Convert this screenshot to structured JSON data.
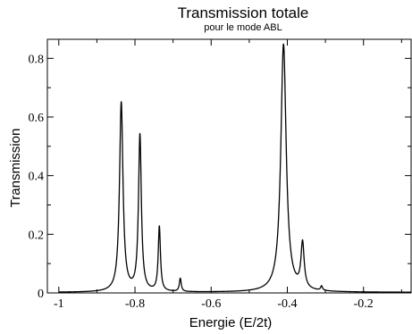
{
  "chart_data": {
    "type": "line",
    "title": "Transmission totale",
    "subtitle": "pour le mode ABL",
    "xlabel": "Energie (E/2t)",
    "ylabel": "Transmission",
    "xlim": [
      -1.03,
      -0.075
    ],
    "ylim": [
      0,
      0.865
    ],
    "xticks": [
      {
        "value": -1.0,
        "label": "-1"
      },
      {
        "value": -0.8,
        "label": "-0.8"
      },
      {
        "value": -0.6,
        "label": "-0.6"
      },
      {
        "value": -0.4,
        "label": "-0.4"
      },
      {
        "value": -0.2,
        "label": "-0.2"
      }
    ],
    "yticks": [
      {
        "value": 0.0,
        "label": "0"
      },
      {
        "value": 0.2,
        "label": "0.2"
      },
      {
        "value": 0.4,
        "label": "0.4"
      },
      {
        "value": 0.6,
        "label": "0.6"
      },
      {
        "value": 0.8,
        "label": "0.8"
      }
    ],
    "grid": false,
    "series": [
      {
        "peaks": [
          {
            "x": -0.836,
            "y": 0.645,
            "width": 0.0055
          },
          {
            "x": -0.787,
            "y": 0.532,
            "width": 0.0045
          },
          {
            "x": -0.736,
            "y": 0.22,
            "width": 0.0035
          },
          {
            "x": -0.681,
            "y": 0.045,
            "width": 0.003
          },
          {
            "x": -0.41,
            "y": 0.845,
            "width": 0.0085
          },
          {
            "x": -0.36,
            "y": 0.155,
            "width": 0.005
          },
          {
            "x": -0.31,
            "y": 0.015,
            "width": 0.003
          }
        ],
        "baseline": 0.002
      }
    ]
  }
}
